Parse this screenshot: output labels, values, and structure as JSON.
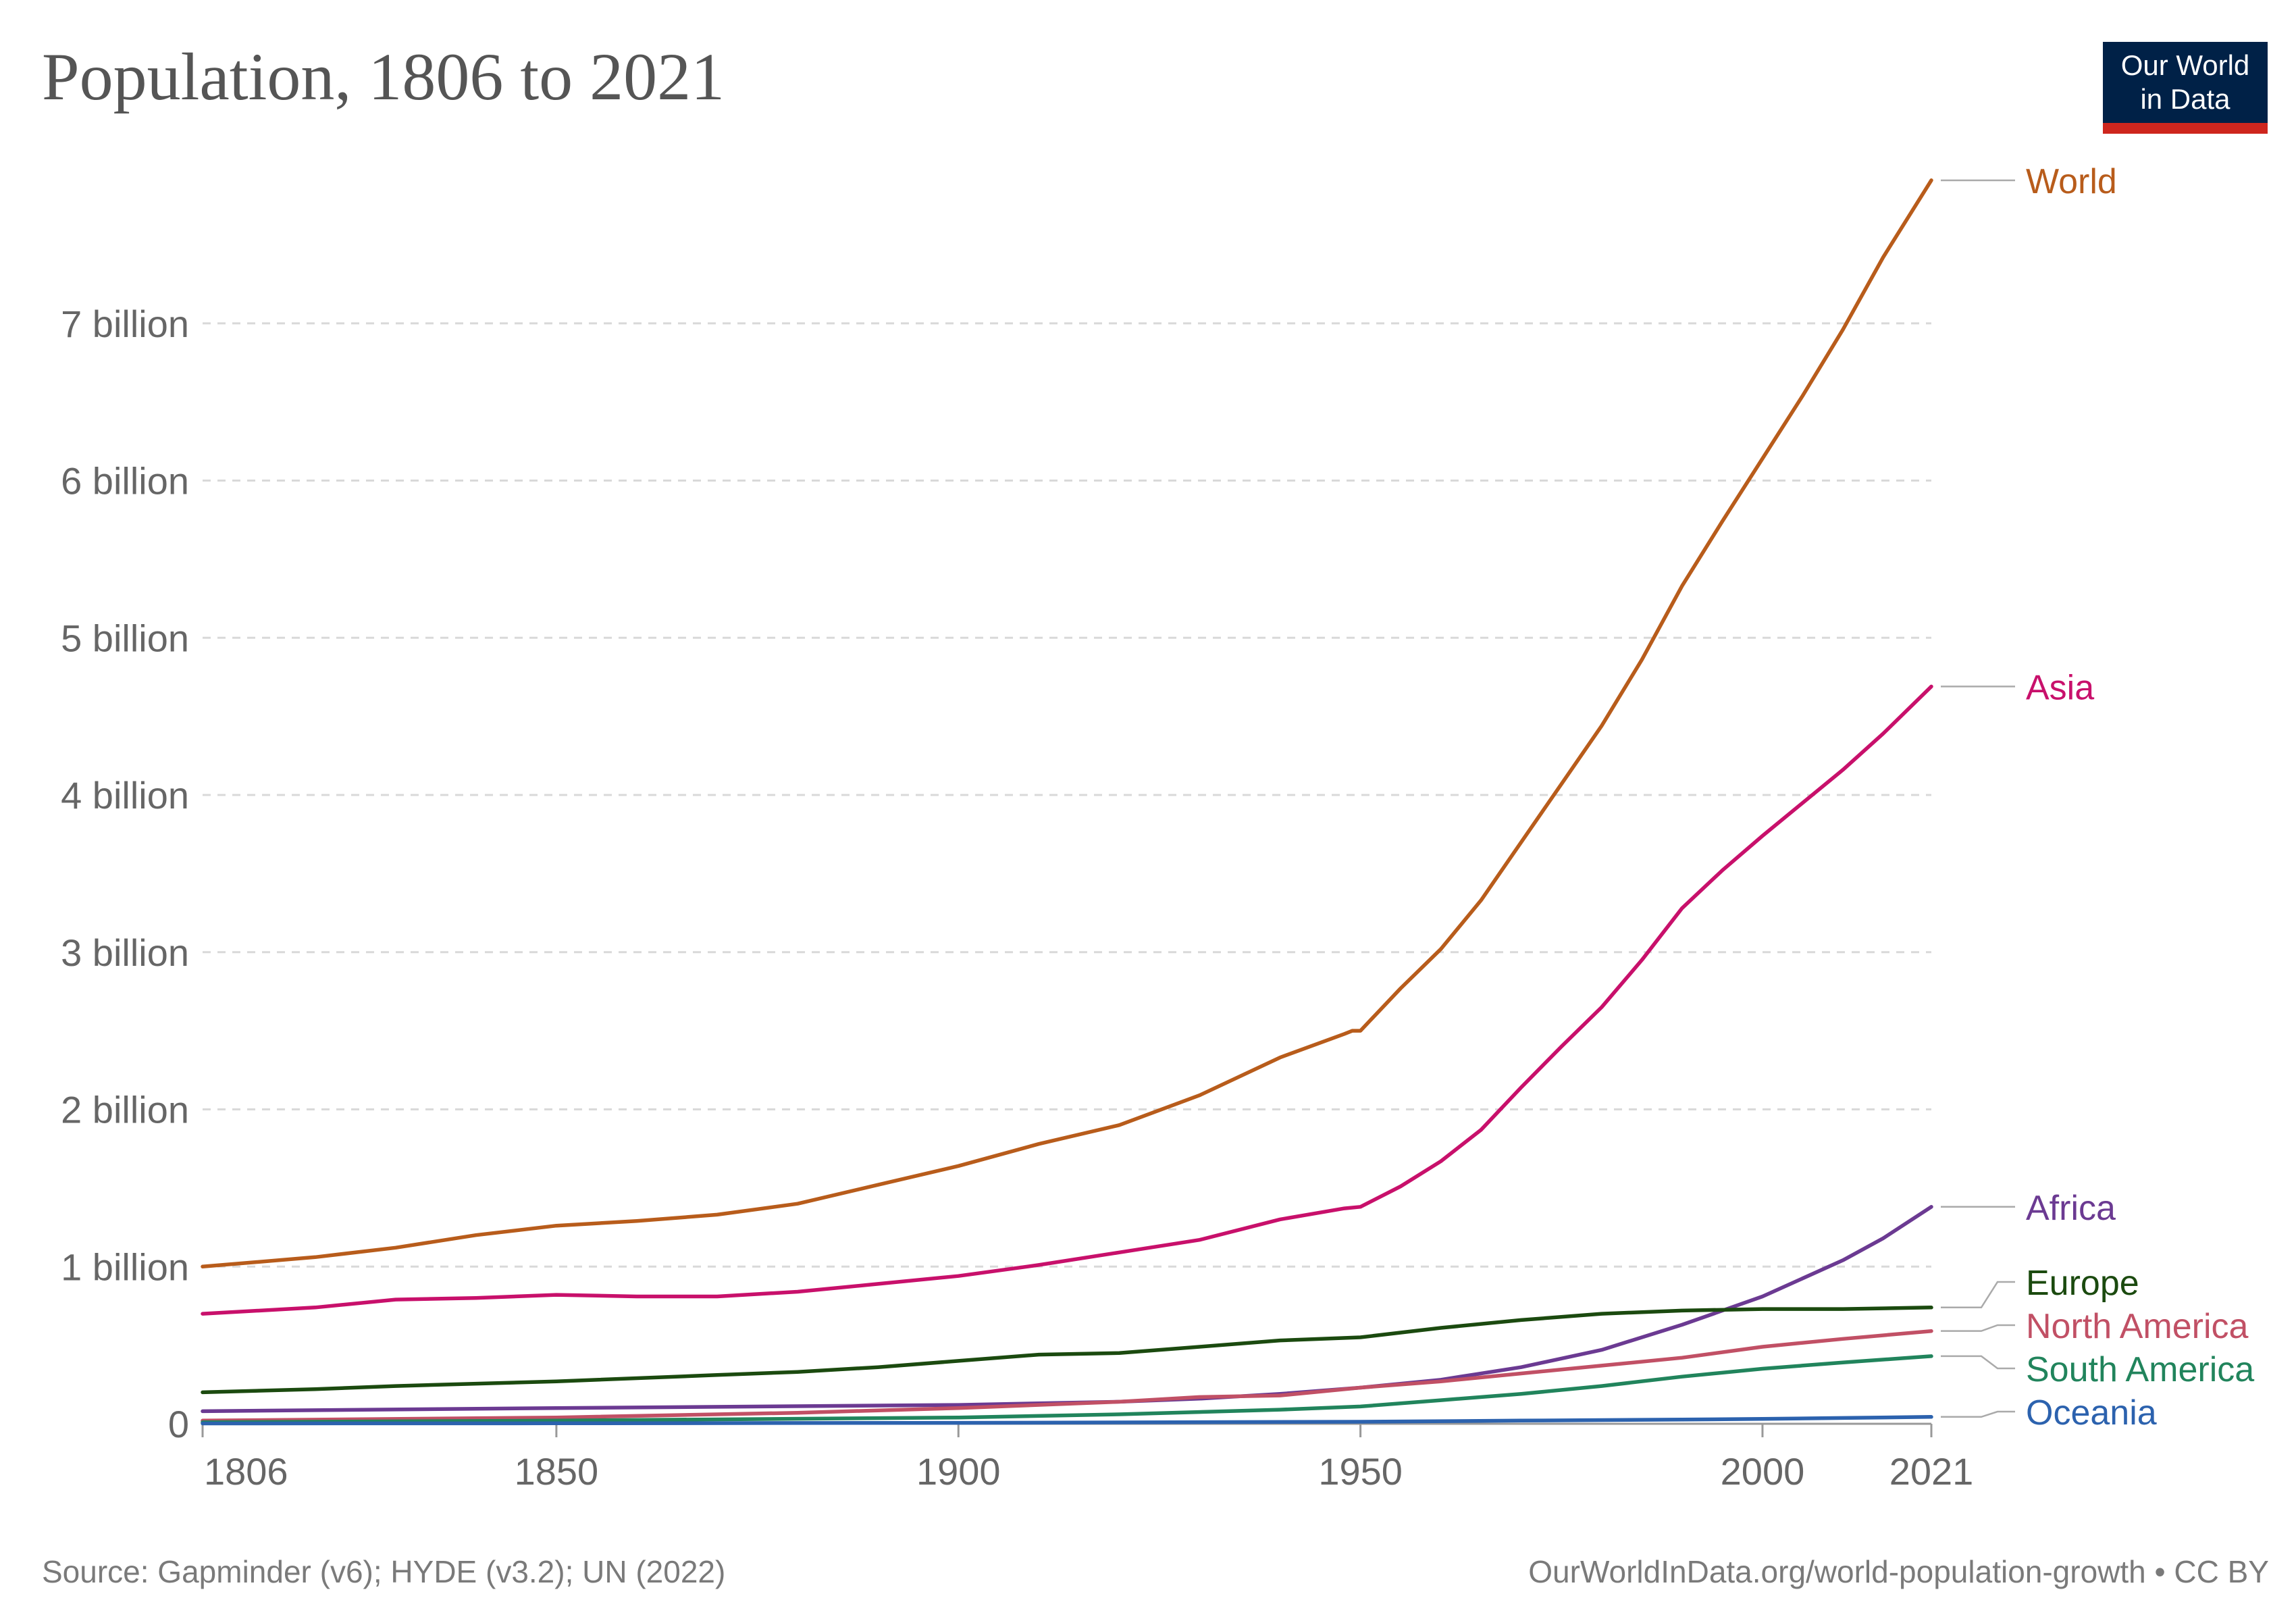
{
  "header": {
    "title": "Population, 1806 to 2021",
    "logo_line1": "Our World",
    "logo_line2": "in Data"
  },
  "footer": {
    "source": "Source: Gapminder (v6); HYDE (v3.2); UN (2022)",
    "url": "OurWorldInData.org/world-population-growth • CC BY"
  },
  "colors": {
    "logo_bg": "#002147",
    "logo_bar": "#ce261e",
    "grid": "#d9d9d9",
    "axis_text": "#666666"
  },
  "chart_data": {
    "type": "line",
    "title": "Population, 1806 to 2021",
    "xlabel": "",
    "ylabel": "",
    "xlim": [
      1806,
      2021
    ],
    "ylim": [
      0,
      8000000000
    ],
    "x_ticks": [
      {
        "value": 1806,
        "label": "1806"
      },
      {
        "value": 1850,
        "label": "1850"
      },
      {
        "value": 1900,
        "label": "1900"
      },
      {
        "value": 1950,
        "label": "1950"
      },
      {
        "value": 2000,
        "label": "2000"
      },
      {
        "value": 2021,
        "label": "2021"
      }
    ],
    "y_ticks": [
      {
        "value": 0,
        "label": "0"
      },
      {
        "value": 1000000000,
        "label": "1 billion"
      },
      {
        "value": 2000000000,
        "label": "2 billion"
      },
      {
        "value": 3000000000,
        "label": "3 billion"
      },
      {
        "value": 4000000000,
        "label": "4 billion"
      },
      {
        "value": 5000000000,
        "label": "5 billion"
      },
      {
        "value": 6000000000,
        "label": "6 billion"
      },
      {
        "value": 7000000000,
        "label": "7 billion"
      }
    ],
    "grid": "horizontal dashed",
    "legend": "inline labels at right end of lines",
    "series": [
      {
        "name": "World",
        "color": "#b85c1b",
        "points": [
          [
            1806,
            1000000000
          ],
          [
            1820,
            1060000000
          ],
          [
            1830,
            1120000000
          ],
          [
            1840,
            1200000000
          ],
          [
            1850,
            1260000000
          ],
          [
            1860,
            1290000000
          ],
          [
            1870,
            1330000000
          ],
          [
            1880,
            1400000000
          ],
          [
            1890,
            1520000000
          ],
          [
            1900,
            1640000000
          ],
          [
            1910,
            1780000000
          ],
          [
            1920,
            1900000000
          ],
          [
            1930,
            2090000000
          ],
          [
            1940,
            2330000000
          ],
          [
            1948,
            2480000000
          ],
          [
            1949,
            2500000000
          ],
          [
            1950,
            2500000000
          ],
          [
            1955,
            2770000000
          ],
          [
            1960,
            3020000000
          ],
          [
            1965,
            3330000000
          ],
          [
            1970,
            3700000000
          ],
          [
            1975,
            4070000000
          ],
          [
            1980,
            4440000000
          ],
          [
            1985,
            4860000000
          ],
          [
            1990,
            5330000000
          ],
          [
            1995,
            5740000000
          ],
          [
            2000,
            6140000000
          ],
          [
            2005,
            6540000000
          ],
          [
            2010,
            6960000000
          ],
          [
            2015,
            7420000000
          ],
          [
            2021,
            7910000000
          ]
        ]
      },
      {
        "name": "Asia",
        "color": "#c8106b",
        "points": [
          [
            1806,
            700000000
          ],
          [
            1820,
            740000000
          ],
          [
            1830,
            790000000
          ],
          [
            1840,
            800000000
          ],
          [
            1850,
            820000000
          ],
          [
            1860,
            810000000
          ],
          [
            1870,
            810000000
          ],
          [
            1880,
            840000000
          ],
          [
            1890,
            890000000
          ],
          [
            1900,
            940000000
          ],
          [
            1910,
            1010000000
          ],
          [
            1920,
            1090000000
          ],
          [
            1930,
            1170000000
          ],
          [
            1940,
            1300000000
          ],
          [
            1948,
            1370000000
          ],
          [
            1950,
            1380000000
          ],
          [
            1955,
            1510000000
          ],
          [
            1960,
            1670000000
          ],
          [
            1965,
            1870000000
          ],
          [
            1970,
            2140000000
          ],
          [
            1975,
            2400000000
          ],
          [
            1980,
            2650000000
          ],
          [
            1985,
            2950000000
          ],
          [
            1990,
            3280000000
          ],
          [
            1995,
            3520000000
          ],
          [
            2000,
            3740000000
          ],
          [
            2005,
            3950000000
          ],
          [
            2010,
            4160000000
          ],
          [
            2015,
            4390000000
          ],
          [
            2021,
            4690000000
          ]
        ]
      },
      {
        "name": "Africa",
        "color": "#6b3a92",
        "points": [
          [
            1806,
            80000000
          ],
          [
            1850,
            100000000
          ],
          [
            1900,
            120000000
          ],
          [
            1920,
            140000000
          ],
          [
            1930,
            160000000
          ],
          [
            1940,
            190000000
          ],
          [
            1950,
            230000000
          ],
          [
            1960,
            280000000
          ],
          [
            1970,
            360000000
          ],
          [
            1980,
            470000000
          ],
          [
            1990,
            630000000
          ],
          [
            2000,
            810000000
          ],
          [
            2010,
            1040000000
          ],
          [
            2015,
            1180000000
          ],
          [
            2021,
            1380000000
          ]
        ]
      },
      {
        "name": "Europe",
        "color": "#1b4a0f",
        "points": [
          [
            1806,
            200000000
          ],
          [
            1820,
            220000000
          ],
          [
            1830,
            240000000
          ],
          [
            1850,
            270000000
          ],
          [
            1870,
            310000000
          ],
          [
            1880,
            330000000
          ],
          [
            1890,
            360000000
          ],
          [
            1900,
            400000000
          ],
          [
            1910,
            440000000
          ],
          [
            1920,
            450000000
          ],
          [
            1930,
            490000000
          ],
          [
            1940,
            530000000
          ],
          [
            1950,
            550000000
          ],
          [
            1960,
            610000000
          ],
          [
            1970,
            660000000
          ],
          [
            1980,
            700000000
          ],
          [
            1990,
            720000000
          ],
          [
            2000,
            730000000
          ],
          [
            2010,
            730000000
          ],
          [
            2021,
            740000000
          ]
        ]
      },
      {
        "name": "North America",
        "color": "#c15065",
        "points": [
          [
            1806,
            20000000
          ],
          [
            1850,
            40000000
          ],
          [
            1880,
            70000000
          ],
          [
            1900,
            100000000
          ],
          [
            1920,
            140000000
          ],
          [
            1930,
            170000000
          ],
          [
            1940,
            180000000
          ],
          [
            1950,
            230000000
          ],
          [
            1960,
            270000000
          ],
          [
            1970,
            320000000
          ],
          [
            1980,
            370000000
          ],
          [
            1990,
            420000000
          ],
          [
            2000,
            490000000
          ],
          [
            2010,
            540000000
          ],
          [
            2021,
            590000000
          ]
        ]
      },
      {
        "name": "South America",
        "color": "#21845c",
        "points": [
          [
            1806,
            10000000
          ],
          [
            1850,
            20000000
          ],
          [
            1900,
            40000000
          ],
          [
            1920,
            60000000
          ],
          [
            1940,
            90000000
          ],
          [
            1950,
            110000000
          ],
          [
            1960,
            150000000
          ],
          [
            1970,
            190000000
          ],
          [
            1980,
            240000000
          ],
          [
            1990,
            300000000
          ],
          [
            2000,
            350000000
          ],
          [
            2010,
            390000000
          ],
          [
            2021,
            430000000
          ]
        ]
      },
      {
        "name": "Oceania",
        "color": "#2c62ae",
        "points": [
          [
            1806,
            2000000
          ],
          [
            1850,
            3000000
          ],
          [
            1900,
            6000000
          ],
          [
            1950,
            13000000
          ],
          [
            1970,
            20000000
          ],
          [
            1990,
            27000000
          ],
          [
            2000,
            31000000
          ],
          [
            2010,
            37000000
          ],
          [
            2021,
            44000000
          ]
        ]
      }
    ]
  }
}
